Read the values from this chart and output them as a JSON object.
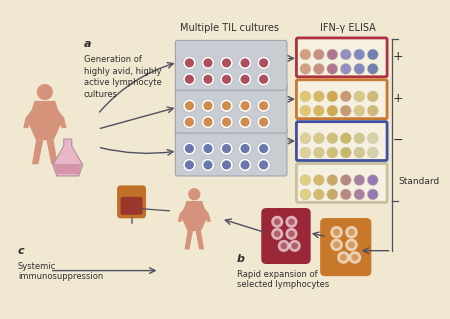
{
  "background_color": "#f0e8d0",
  "labels": {
    "a": "a",
    "b": "b",
    "c": "c",
    "til_cultures": "Multiple TIL cultures",
    "ifn_elisa": "IFN-γ ELISA",
    "gen_text": "Generation of\nhighly avid, highly\nactive lymphocyte\ncultures",
    "rapid_exp": "Rapid expansion of\nselected lymphocytes",
    "systemic": "Systemic\nimmunosuppression",
    "plus1": "+",
    "plus2": "+",
    "minus": "−",
    "standard": "Standard"
  },
  "colors": {
    "skin": "#d4937a",
    "flask_pink": "#e8b8c8",
    "flask_liquid": "#c87890",
    "plate_gray": "#c8cdd4",
    "plate_border": "#a0a5ac",
    "cells_red": "#a03040",
    "cells_orange": "#c87830",
    "cells_blue": "#5060a0",
    "elisa_bg": "#f5f0e0",
    "elisa_border_red": "#b03040",
    "elisa_border_orange": "#c87830",
    "elisa_border_blue": "#4050a0",
    "expanded_red": "#9a2838",
    "expanded_orange": "#c87828",
    "arrow_color": "#505060",
    "bracket_color": "#505060",
    "text_color": "#303030"
  }
}
